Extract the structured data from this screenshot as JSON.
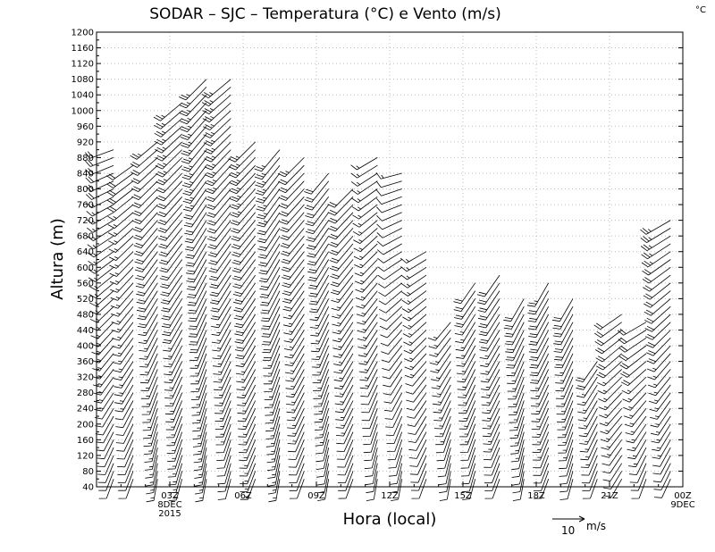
{
  "chart_data": {
    "type": "wind_barb_profile",
    "title": "SODAR  –  SJC  –  Temperatura (°C) e Vento (m/s)",
    "unit_corner": "°C",
    "xlabel": "Hora (local)",
    "ylabel": "Altura (m)",
    "ylim": [
      40,
      1200
    ],
    "y_ticks": [
      40,
      80,
      120,
      160,
      200,
      240,
      280,
      320,
      360,
      400,
      440,
      480,
      520,
      560,
      600,
      640,
      680,
      720,
      760,
      800,
      840,
      880,
      920,
      960,
      1000,
      1040,
      1080,
      1120,
      1160,
      1200
    ],
    "x_range_hours": [
      0,
      24
    ],
    "x_ticks": [
      {
        "hour": 3,
        "lines": [
          "03Z",
          "8DEC",
          "2015"
        ]
      },
      {
        "hour": 6,
        "lines": [
          "06Z"
        ]
      },
      {
        "hour": 9,
        "lines": [
          "09Z"
        ]
      },
      {
        "hour": 12,
        "lines": [
          "12Z"
        ]
      },
      {
        "hour": 15,
        "lines": [
          "15Z"
        ]
      },
      {
        "hour": 18,
        "lines": [
          "18Z"
        ]
      },
      {
        "hour": 21,
        "lines": [
          "21Z"
        ]
      },
      {
        "hour": 24,
        "lines": [
          "00Z",
          "9DEC"
        ]
      }
    ],
    "grid": true,
    "wind_key": {
      "speed": 10,
      "label": "10",
      "unit": "m/s"
    },
    "profiles": [
      {
        "hour": 0.7,
        "top": 900,
        "low_dir": 200,
        "low_speed": 6,
        "high_dir": 250,
        "high_speed": 10
      },
      {
        "hour": 1.5,
        "top": 870,
        "low_dir": 200,
        "low_speed": 6,
        "high_dir": 235,
        "high_speed": 10
      },
      {
        "hour": 2.5,
        "top": 920,
        "low_dir": 190,
        "low_speed": 7,
        "high_dir": 230,
        "high_speed": 12
      },
      {
        "hour": 3.5,
        "top": 1020,
        "low_dir": 195,
        "low_speed": 7,
        "high_dir": 230,
        "high_speed": 13
      },
      {
        "hour": 4.5,
        "top": 1090,
        "low_dir": 190,
        "low_speed": 7,
        "high_dir": 225,
        "high_speed": 14
      },
      {
        "hour": 5.5,
        "top": 1080,
        "low_dir": 195,
        "low_speed": 6,
        "high_dir": 230,
        "high_speed": 14
      },
      {
        "hour": 6.5,
        "top": 920,
        "low_dir": 200,
        "low_speed": 7,
        "high_dir": 225,
        "high_speed": 13
      },
      {
        "hour": 7.5,
        "top": 900,
        "low_dir": 190,
        "low_speed": 7,
        "high_dir": 220,
        "high_speed": 13
      },
      {
        "hour": 8.5,
        "top": 880,
        "low_dir": 200,
        "low_speed": 6,
        "high_dir": 225,
        "high_speed": 12
      },
      {
        "hour": 9.5,
        "top": 850,
        "low_dir": 190,
        "low_speed": 6,
        "high_dir": 220,
        "high_speed": 12
      },
      {
        "hour": 10.5,
        "top": 800,
        "low_dir": 200,
        "low_speed": 6,
        "high_dir": 225,
        "high_speed": 11
      },
      {
        "hour": 11.5,
        "top": 890,
        "low_dir": 190,
        "low_speed": 6,
        "high_dir": 240,
        "high_speed": 9
      },
      {
        "hour": 12.5,
        "top": 840,
        "low_dir": 190,
        "low_speed": 6,
        "high_dir": 255,
        "high_speed": 7
      },
      {
        "hour": 13.5,
        "top": 640,
        "low_dir": 200,
        "low_speed": 6,
        "high_dir": 240,
        "high_speed": 8
      },
      {
        "hour": 14.5,
        "top": 460,
        "low_dir": 190,
        "low_speed": 6,
        "high_dir": 220,
        "high_speed": 9
      },
      {
        "hour": 15.5,
        "top": 560,
        "low_dir": 195,
        "low_speed": 6,
        "high_dir": 215,
        "high_speed": 10
      },
      {
        "hour": 16.5,
        "top": 580,
        "low_dir": 200,
        "low_speed": 6,
        "high_dir": 215,
        "high_speed": 11
      },
      {
        "hour": 17.5,
        "top": 520,
        "low_dir": 190,
        "low_speed": 6,
        "high_dir": 210,
        "high_speed": 11
      },
      {
        "hour": 18.5,
        "top": 560,
        "low_dir": 200,
        "low_speed": 6,
        "high_dir": 210,
        "high_speed": 12
      },
      {
        "hour": 19.5,
        "top": 520,
        "low_dir": 195,
        "low_speed": 6,
        "high_dir": 210,
        "high_speed": 11
      },
      {
        "hour": 20.5,
        "top": 360,
        "low_dir": 200,
        "low_speed": 6,
        "high_dir": 215,
        "high_speed": 10
      },
      {
        "hour": 21.5,
        "top": 480,
        "low_dir": 210,
        "low_speed": 6,
        "high_dir": 235,
        "high_speed": 11
      },
      {
        "hour": 22.5,
        "top": 460,
        "low_dir": 200,
        "low_speed": 6,
        "high_dir": 240,
        "high_speed": 11
      },
      {
        "hour": 23.5,
        "top": 720,
        "low_dir": 205,
        "low_speed": 6,
        "high_dir": 240,
        "high_speed": 13
      }
    ]
  }
}
